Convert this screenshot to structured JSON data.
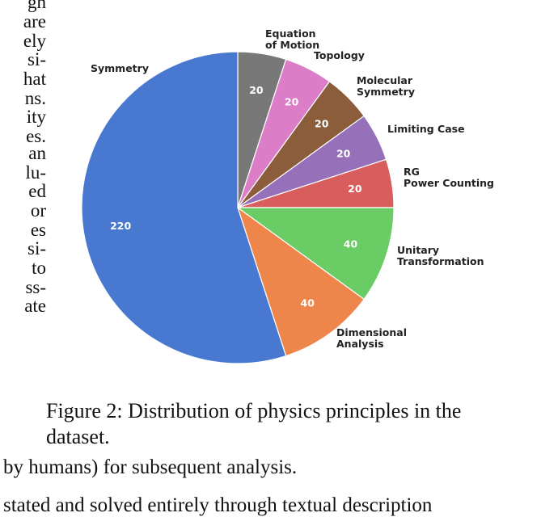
{
  "left_column_fragments": [
    "gh",
    "are",
    "ely",
    "si-",
    "hat",
    "ns.",
    "ity",
    "es.",
    "an",
    "lu-",
    "ed",
    "or",
    "es",
    "si-",
    "to",
    "ss-",
    "ate"
  ],
  "caption": "Figure 2: Distribution of physics principles in the dataset.",
  "body_line": "by humans) for subsequent analysis.",
  "cut_line": "stated and solved entirely through textual description",
  "chart_data": {
    "type": "pie",
    "title": "",
    "start_angle_deg": 90,
    "direction": "clockwise",
    "slices": [
      {
        "label": "Equation\nof Motion",
        "value": 20,
        "color": "#787878"
      },
      {
        "label": "Topology",
        "value": 20,
        "color": "#dc7ec7"
      },
      {
        "label": "Molecular\nSymmetry",
        "value": 20,
        "color": "#8b5d3b"
      },
      {
        "label": "Limiting Case",
        "value": 20,
        "color": "#9671b9"
      },
      {
        "label": "RG\nPower Counting",
        "value": 20,
        "color": "#d85e5e"
      },
      {
        "label": "Unitary\nTransformation",
        "value": 40,
        "color": "#6acc64"
      },
      {
        "label": "Dimensional\nAnalysis",
        "value": 40,
        "color": "#ee854a"
      },
      {
        "label": "Symmetry",
        "value": 220,
        "color": "#4878d0"
      }
    ]
  }
}
